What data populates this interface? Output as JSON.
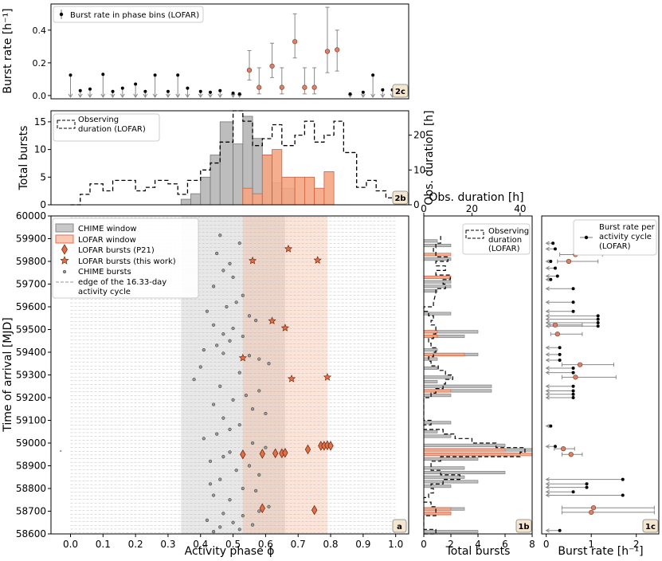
{
  "chart_data": [
    {
      "panel": "2c",
      "type": "scatter",
      "ylabel": "Burst rate [h⁻¹]",
      "ylim": [
        -0.02,
        0.56
      ],
      "yticks": [
        "0.0",
        "0.2",
        "0.4"
      ],
      "legend": "Burst rate in phase bins (LOFAR)",
      "tag": "2c",
      "upper_limits_phase": [
        0.0,
        0.03,
        0.06,
        0.1,
        0.13,
        0.16,
        0.2,
        0.23,
        0.26,
        0.3,
        0.33,
        0.36,
        0.4,
        0.43,
        0.46,
        0.5,
        0.52,
        0.86,
        0.9,
        0.93,
        0.96,
        0.99,
        1.02
      ],
      "upper_limits_value": [
        0.125,
        0.03,
        0.04,
        0.13,
        0.025,
        0.045,
        0.07,
        0.025,
        0.125,
        0.025,
        0.125,
        0.045,
        0.025,
        0.02,
        0.03,
        0.015,
        0.01,
        0.01,
        0.02,
        0.125,
        0.035,
        0.035,
        0.045
      ],
      "detections_phase": [
        0.55,
        0.58,
        0.62,
        0.65,
        0.69,
        0.72,
        0.75,
        0.79,
        0.82
      ],
      "detections_value": [
        0.155,
        0.05,
        0.18,
        0.05,
        0.33,
        0.05,
        0.05,
        0.27,
        0.28
      ],
      "detections_err_low": [
        0.06,
        0.04,
        0.07,
        0.04,
        0.1,
        0.04,
        0.04,
        0.13,
        0.13
      ],
      "detections_err_high": [
        0.12,
        0.12,
        0.14,
        0.12,
        0.17,
        0.12,
        0.12,
        0.27,
        0.12
      ]
    },
    {
      "panel": "2b",
      "type": "bar",
      "ylabel": "Total bursts",
      "ylabel_right": "Obs. duration [h]",
      "ylim": [
        0,
        17
      ],
      "yticks": [
        "0",
        "5",
        "10",
        "15"
      ],
      "ylim_right": [
        0,
        27
      ],
      "yticks_right": [
        "0",
        "10",
        "20"
      ],
      "legend": "Observing duration (LOFAR)",
      "tag": "2b",
      "bin_edges": [
        0.34,
        0.37,
        0.4,
        0.43,
        0.46,
        0.5,
        0.53,
        0.56,
        0.59,
        0.62,
        0.65,
        0.69,
        0.72,
        0.75,
        0.78,
        0.81
      ],
      "chime_counts": [
        1,
        2,
        5,
        9,
        15,
        11,
        16,
        12,
        9,
        4,
        3,
        0,
        0,
        0,
        0
      ],
      "lofar_counts": [
        0,
        0,
        0,
        0,
        0,
        0,
        3,
        2,
        9,
        10,
        5,
        5,
        5,
        3,
        6
      ],
      "obs_duration_phase_edges": [
        0.0,
        0.03,
        0.06,
        0.1,
        0.13,
        0.16,
        0.2,
        0.23,
        0.26,
        0.3,
        0.33,
        0.36,
        0.4,
        0.43,
        0.46,
        0.5,
        0.53,
        0.56,
        0.59,
        0.62,
        0.65,
        0.69,
        0.72,
        0.75,
        0.78,
        0.81,
        0.84,
        0.88,
        0.91,
        0.94,
        0.97,
        1.0
      ],
      "obs_duration_hours": [
        0,
        3,
        6,
        4,
        7,
        7,
        4,
        5,
        7,
        6,
        3,
        7,
        10,
        12,
        18,
        27,
        24,
        17,
        19,
        23,
        17,
        20,
        24,
        18,
        20,
        24,
        15,
        5,
        7,
        4,
        2
      ]
    },
    {
      "panel": "a",
      "type": "scatter",
      "xlabel": "Activity phase ϕ",
      "ylabel": "Time of arrival [MJD]",
      "xlim": [
        -0.06,
        1.04
      ],
      "ylim": [
        58600,
        60000
      ],
      "xticks": [
        "0.0",
        "0.1",
        "0.2",
        "0.3",
        "0.4",
        "0.5",
        "0.6",
        "0.7",
        "0.8",
        "0.9",
        "1.0"
      ],
      "yticks": [
        "58600",
        "58700",
        "58800",
        "58900",
        "59000",
        "59100",
        "59200",
        "59300",
        "59400",
        "59500",
        "59600",
        "59700",
        "59800",
        "59900",
        "60000"
      ],
      "chime_window": [
        0.34,
        0.66
      ],
      "lofar_window": [
        0.53,
        0.79
      ],
      "legend": [
        "CHIME window",
        "LOFAR window",
        "LOFAR bursts (P21)",
        "LOFAR bursts (this work)",
        "CHIME bursts",
        "edge of the 16.33-day",
        "activity cycle"
      ],
      "tag": "a",
      "lofar_p21_phase": [
        0.53,
        0.59,
        0.63,
        0.65,
        0.66,
        0.73,
        0.77,
        0.78,
        0.79,
        0.8,
        0.75,
        0.59
      ],
      "lofar_p21_mjd": [
        58950,
        58953,
        58955,
        58955,
        58957,
        58972,
        58988,
        58988,
        58990,
        58988,
        58705,
        58713
      ],
      "lofar_this_work_phase": [
        0.56,
        0.67,
        0.76,
        0.62,
        0.66,
        0.53,
        0.68,
        0.79
      ],
      "lofar_this_work_mjd": [
        59803,
        59855,
        59805,
        59538,
        59507,
        59375,
        59283,
        59290
      ],
      "chime_phase": [
        0.46,
        0.52,
        0.45,
        0.49,
        0.47,
        0.5,
        0.44,
        0.53,
        0.51,
        0.48,
        0.42,
        0.55,
        0.57,
        0.44,
        0.5,
        0.47,
        0.53,
        0.49,
        0.45,
        0.41,
        0.47,
        0.55,
        0.58,
        0.61,
        0.4,
        0.52,
        0.38,
        0.46,
        0.58,
        0.54,
        0.5,
        0.44,
        0.56,
        0.6,
        0.47,
        0.52,
        0.49,
        0.45,
        0.41,
        0.56,
        0.6,
        0.49,
        0.47,
        0.43,
        0.55,
        0.51,
        0.58,
        0.46,
        0.43,
        0.53,
        0.57,
        0.44,
        0.49,
        0.61,
        0.58,
        0.47,
        0.53,
        0.42,
        0.5,
        0.56,
        0.46,
        0.52,
        0.44
      ],
      "chime_mjd": [
        59915,
        59880,
        59835,
        59790,
        59760,
        59730,
        59690,
        59650,
        59620,
        59600,
        59580,
        59560,
        59540,
        59520,
        59505,
        59480,
        59470,
        59450,
        59430,
        59410,
        59395,
        59385,
        59370,
        59350,
        59335,
        59310,
        59280,
        59250,
        59230,
        59210,
        59190,
        59170,
        59150,
        59130,
        59110,
        59080,
        59060,
        59040,
        59020,
        59000,
        58980,
        58960,
        58940,
        58920,
        58900,
        58880,
        58860,
        58840,
        58820,
        58800,
        58790,
        58770,
        58750,
        58720,
        58700,
        58690,
        58680,
        58660,
        58650,
        58640,
        58630,
        58620,
        58610
      ]
    },
    {
      "panel": "1b",
      "type": "bar",
      "orientation": "horizontal",
      "xlabel": "Total bursts",
      "xlabel_top": "Obs. duration [h]",
      "xlim": [
        0,
        8
      ],
      "xticks": [
        "0",
        "2",
        "4",
        "6",
        "8"
      ],
      "xticks_top": [
        "0",
        "20",
        "40"
      ],
      "legend": [
        "Observing",
        "duration",
        "(LOFAR)"
      ],
      "tag": "1b",
      "mjd_bins": [
        58600,
        58620,
        58640,
        58660,
        58680,
        58700,
        58720,
        58740,
        58760,
        58780,
        58800,
        58820,
        58840,
        58860,
        58880,
        58900,
        58920,
        58940,
        58960,
        58980,
        59000,
        59020,
        59040,
        59060,
        59080,
        59100,
        59180,
        59200,
        59220,
        59240,
        59260,
        59280,
        59300,
        59320,
        59340,
        59360,
        59380,
        59400,
        59420,
        59440,
        59460,
        59480,
        59500,
        59520,
        59540,
        59560,
        59580,
        59600,
        59660,
        59680,
        59700,
        59720,
        59740,
        59760,
        59780,
        59800,
        59820,
        59840,
        59860,
        59880,
        59900
      ],
      "chime_counts": [
        4,
        0,
        0,
        0,
        2,
        3,
        0,
        0,
        0,
        0,
        2,
        4,
        3,
        6,
        3,
        0,
        4,
        7,
        8,
        6,
        0,
        2,
        1,
        0,
        2,
        0,
        0,
        2,
        5,
        5,
        1,
        2,
        0,
        1,
        0,
        1,
        4,
        1,
        0,
        0,
        3,
        4,
        0,
        0,
        0,
        2,
        0,
        0,
        1,
        2,
        2,
        1,
        0,
        0,
        0,
        2,
        1,
        0,
        2,
        1,
        0
      ],
      "lofar_counts": [
        0,
        0,
        0,
        0,
        2,
        2,
        0,
        0,
        0,
        0,
        0,
        0,
        0,
        0,
        0,
        0,
        0,
        8,
        6,
        0,
        0,
        0,
        0,
        0,
        0,
        0,
        0,
        0,
        2,
        0,
        0,
        0,
        0,
        0,
        0,
        0,
        3,
        0,
        0,
        0,
        1,
        1,
        0,
        0,
        0,
        0,
        0,
        0,
        0,
        0,
        0,
        2,
        0,
        0,
        0,
        0,
        2,
        0,
        0,
        0,
        0
      ],
      "obs_duration_hours": [
        5,
        0,
        0,
        0,
        5,
        5,
        3,
        0,
        2,
        4,
        3,
        8,
        15,
        7,
        3,
        3,
        7,
        40,
        42,
        30,
        20,
        13,
        8,
        0,
        3,
        0,
        0,
        3,
        5,
        8,
        9,
        12,
        9,
        6,
        3,
        2,
        4,
        5,
        3,
        2,
        4,
        5,
        5,
        3,
        4,
        2,
        0,
        4,
        5,
        9,
        8,
        11,
        5,
        9,
        5,
        10,
        5,
        4,
        5,
        7,
        7
      ]
    },
    {
      "panel": "1c",
      "type": "scatter",
      "xlabel": "Burst rate [h⁻¹]",
      "xlim": [
        -0.1,
        2.5
      ],
      "xticks": [
        "0",
        "1",
        "2"
      ],
      "legend": [
        "Burst rate per",
        "activity cycle",
        "(LOFAR)"
      ],
      "tag": "1c",
      "upper_limits_rate": [
        0.15,
        0.2,
        0.1,
        0.2,
        0.25,
        0.1,
        0.6,
        0.6,
        0.6,
        1.15,
        1.15,
        1.15,
        1.15,
        0.3,
        0.3,
        0.3,
        0.6,
        0.6,
        0.6,
        0.6,
        0.6,
        0.6,
        0.1,
        0.2,
        1.7,
        0.9,
        0.9,
        0.6,
        1.7,
        0.3
      ],
      "upper_limits_mjd": [
        59880,
        59855,
        59800,
        59770,
        59735,
        59720,
        59680,
        59620,
        59580,
        59560,
        59545,
        59530,
        59515,
        59420,
        59390,
        59365,
        59330,
        59310,
        59250,
        59230,
        59215,
        59200,
        59075,
        58985,
        58840,
        58820,
        58805,
        58785,
        58770,
        58615
      ],
      "detections_rate": [
        0.65,
        0.5,
        0.2,
        0.25,
        0.75,
        0.65,
        0.38,
        0.55,
        1.05,
        1.0
      ],
      "detections_mjd": [
        59830,
        59800,
        59520,
        59480,
        59345,
        59290,
        58975,
        58950,
        58715,
        58695
      ],
      "detections_err_low": [
        0.35,
        0.25,
        0.12,
        0.15,
        0.4,
        0.3,
        0.2,
        0.2,
        0.7,
        0.65
      ],
      "detections_err_high": [
        0.6,
        0.65,
        0.6,
        0.55,
        0.75,
        0.9,
        0.25,
        0.25,
        1.35,
        1.4
      ]
    }
  ]
}
